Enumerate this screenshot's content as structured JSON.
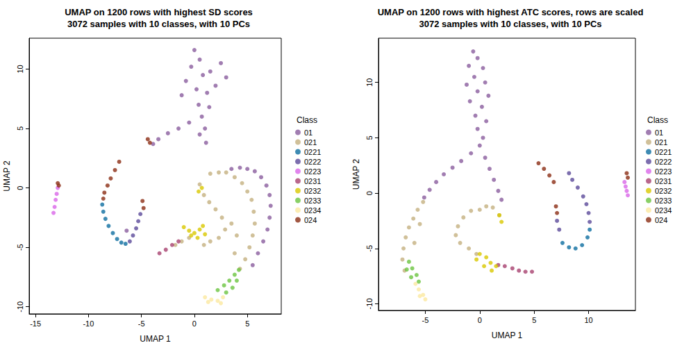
{
  "chart_data": [
    {
      "type": "scatter",
      "title": "UMAP on 1200 rows with highest SD scores\n3072 samples with 10 classes, with 10 PCs",
      "x_label": "UMAP 1",
      "y_label": "UMAP 2",
      "legend_title": "Class",
      "legend": "right",
      "grid": false,
      "marker": "circle",
      "xlim": [
        -15.6,
        8.2
      ],
      "ylim": [
        -10.6,
        12.6
      ],
      "xticks": [
        -15,
        -10,
        -5,
        0,
        5
      ],
      "yticks": [
        -10,
        -5,
        0,
        5,
        10
      ],
      "series": [
        {
          "name": "01",
          "color": "#8A5C9E",
          "values": [
            [
              0,
              11.6
            ],
            [
              0.5,
              10.8
            ],
            [
              -0.3,
              10.2
            ],
            [
              0.8,
              9.5
            ],
            [
              1.5,
              9.8
            ],
            [
              2.5,
              10.5
            ],
            [
              3,
              9.3
            ],
            [
              -0.8,
              9
            ],
            [
              0.2,
              8.3
            ],
            [
              1.2,
              8
            ],
            [
              2,
              8.6
            ],
            [
              -1.2,
              7.8
            ],
            [
              0.4,
              7
            ],
            [
              1.4,
              6.8
            ],
            [
              0.7,
              6
            ],
            [
              1,
              5
            ],
            [
              0.5,
              4.5
            ],
            [
              1.1,
              3.8
            ],
            [
              -0.5,
              5.5
            ],
            [
              -1.5,
              5
            ],
            [
              -2.5,
              4.6
            ],
            [
              -3.4,
              4.1
            ],
            [
              -3.9,
              3.7
            ],
            [
              3.5,
              1.6
            ],
            [
              4.3,
              1.7
            ],
            [
              5,
              1.6
            ],
            [
              5.7,
              1.4
            ],
            [
              6.3,
              0.9
            ],
            [
              6.8,
              0.2
            ],
            [
              7.1,
              -0.6
            ],
            [
              7.2,
              -1.5
            ],
            [
              7.1,
              -2.5
            ],
            [
              6.9,
              -3.5
            ],
            [
              6.5,
              -4.5
            ],
            [
              6,
              -5.5
            ],
            [
              5.5,
              -6.5
            ],
            [
              -6.4,
              -3.6
            ]
          ]
        },
        {
          "name": "021",
          "color": "#C4B07F",
          "values": [
            [
              1.5,
              1.2
            ],
            [
              2.3,
              1.3
            ],
            [
              3,
              1.3
            ],
            [
              3.8,
              0.9
            ],
            [
              4.5,
              0.4
            ],
            [
              5,
              -0.3
            ],
            [
              5.4,
              -1
            ],
            [
              5.6,
              -2
            ],
            [
              5.7,
              -3
            ],
            [
              5.5,
              -4
            ],
            [
              5.2,
              -5
            ],
            [
              4.8,
              -6
            ],
            [
              4.3,
              -6.8
            ],
            [
              0.5,
              0.3
            ],
            [
              0.9,
              -0.6
            ],
            [
              1.4,
              -1.2
            ],
            [
              2,
              -1.8
            ],
            [
              2.6,
              -2.5
            ],
            [
              2.9,
              -3.5
            ],
            [
              2.3,
              -4.2
            ],
            [
              1.5,
              -4.5
            ],
            [
              0.9,
              -4.8
            ],
            [
              -0.5,
              -4.2
            ],
            [
              -1.2,
              -4.5
            ],
            [
              -1.8,
              -4.8
            ],
            [
              3.5,
              -3
            ],
            [
              4,
              -4
            ],
            [
              3.8,
              -5.5
            ]
          ]
        },
        {
          "name": "0221",
          "color": "#0E6EA0",
          "values": [
            [
              -8.7,
              -1.4
            ],
            [
              -8.6,
              -2
            ],
            [
              -8.4,
              -2.6
            ],
            [
              -8.1,
              -3.2
            ],
            [
              -7.7,
              -3.8
            ],
            [
              -7.3,
              -4.3
            ],
            [
              -6.9,
              -4.6
            ],
            [
              -6.5,
              -4.7
            ]
          ]
        },
        {
          "name": "0222",
          "color": "#5B4A9A",
          "values": [
            [
              -6.1,
              -4.5
            ],
            [
              -5.8,
              -4
            ],
            [
              -5.5,
              -3.4
            ],
            [
              -5.3,
              -2.8
            ],
            [
              -5.1,
              -2.2
            ]
          ]
        },
        {
          "name": "0223",
          "color": "#D966E8",
          "values": [
            [
              -13.3,
              -2.1
            ],
            [
              -13.2,
              -1.6
            ],
            [
              -13.1,
              -1
            ],
            [
              -13,
              -0.5
            ],
            [
              -12.9,
              0
            ]
          ]
        },
        {
          "name": "0231",
          "color": "#A8416F",
          "values": [
            [
              -3.3,
              -5.5
            ],
            [
              -2.7,
              -5.2
            ],
            [
              -2.1,
              -4.8
            ],
            [
              -1.5,
              -4.5
            ]
          ]
        },
        {
          "name": "0232",
          "color": "#D9C800",
          "values": [
            [
              -1,
              -3.3
            ],
            [
              -0.5,
              -3.6
            ],
            [
              0,
              -3.8
            ],
            [
              0.5,
              -3.5
            ],
            [
              1,
              -3.9
            ],
            [
              0.3,
              -4.2
            ],
            [
              -0.3,
              -4
            ],
            [
              0.8,
              -3.2
            ],
            [
              0.7,
              0
            ],
            [
              0.4,
              -0.3
            ]
          ]
        },
        {
          "name": "0233",
          "color": "#6BC440",
          "values": [
            [
              2.2,
              -8.6
            ],
            [
              2.8,
              -8.2
            ],
            [
              3.3,
              -7.8
            ],
            [
              3.8,
              -7.3
            ],
            [
              4.2,
              -6.9
            ],
            [
              3,
              -8.8
            ],
            [
              3.6,
              -8.4
            ],
            [
              4,
              -7.8
            ]
          ]
        },
        {
          "name": "0234",
          "color": "#FBE9A0",
          "values": [
            [
              1,
              -9.2
            ],
            [
              1.6,
              -9.4
            ],
            [
              2.2,
              -9.5
            ],
            [
              2.7,
              -9.2
            ],
            [
              1.3,
              -9.6
            ],
            [
              2.5,
              -9.7
            ]
          ]
        },
        {
          "name": "024",
          "color": "#8B2D14",
          "values": [
            [
              -7.1,
              2.2
            ],
            [
              -7.5,
              1.5
            ],
            [
              -7.9,
              0.8
            ],
            [
              -8.2,
              0.2
            ],
            [
              -8.5,
              -0.4
            ],
            [
              -8.6,
              -0.9
            ],
            [
              -4.8,
              -1.7
            ],
            [
              -4.9,
              -1.1
            ],
            [
              -12.8,
              0.2
            ],
            [
              -12.9,
              0.4
            ],
            [
              -4.4,
              4.1
            ],
            [
              -4.2,
              3.8
            ]
          ]
        }
      ]
    },
    {
      "type": "scatter",
      "title": "UMAP on 1200 rows with highest ATC scores, rows are scaled\n3072 samples with 10 classes, with 10 PCs",
      "x_label": "UMAP 1",
      "y_label": "UMAP 2",
      "legend_title": "Class",
      "legend": "right",
      "grid": false,
      "marker": "circle",
      "xlim": [
        -9.3,
        14.3
      ],
      "ylim": [
        -10.6,
        14
      ],
      "xticks": [
        -5,
        0,
        5,
        10
      ],
      "yticks": [
        -10,
        -5,
        0,
        5,
        10
      ],
      "series": [
        {
          "name": "01",
          "color": "#8A5C9E",
          "values": [
            [
              -0.6,
              12.8
            ],
            [
              -0.2,
              12.2
            ],
            [
              -1,
              11.5
            ],
            [
              0.3,
              11.3
            ],
            [
              -0.5,
              10.5
            ],
            [
              0.5,
              10
            ],
            [
              -1.2,
              9.8
            ],
            [
              -0.2,
              9.2
            ],
            [
              0.8,
              8.8
            ],
            [
              -0.9,
              8.3
            ],
            [
              0.2,
              7.8
            ],
            [
              -0.4,
              7
            ],
            [
              0.6,
              6.5
            ],
            [
              -0.2,
              5.8
            ],
            [
              0.3,
              5
            ],
            [
              0,
              4.3
            ],
            [
              -0.8,
              3.6
            ],
            [
              -1.7,
              2.9
            ],
            [
              -2.5,
              2.3
            ],
            [
              -3.3,
              1.7
            ],
            [
              -4,
              1
            ],
            [
              -4.6,
              0.3
            ],
            [
              -5.1,
              -0.4
            ],
            [
              0.5,
              3.2
            ],
            [
              0.9,
              2.2
            ],
            [
              1.3,
              1.2
            ],
            [
              1.7,
              0.2
            ],
            [
              2,
              -0.6
            ]
          ]
        },
        {
          "name": "021",
          "color": "#C4B07F",
          "values": [
            [
              -5.2,
              -0.8
            ],
            [
              -5.7,
              -1.5
            ],
            [
              -6.1,
              -2.3
            ],
            [
              -6.5,
              -3.1
            ],
            [
              -6.8,
              -4
            ],
            [
              -7,
              -5
            ],
            [
              -7.1,
              -6
            ],
            [
              -6.9,
              -7
            ],
            [
              -5.5,
              -2.8
            ],
            [
              -6,
              -4.5
            ],
            [
              0.6,
              -1.2
            ],
            [
              0,
              -1.5
            ],
            [
              -0.8,
              -1.6
            ],
            [
              -1.5,
              -2.2
            ],
            [
              -2,
              -3
            ],
            [
              -2.2,
              -3.8
            ],
            [
              -1.8,
              -4.5
            ],
            [
              -1,
              -5
            ],
            [
              -0.3,
              -5.5
            ],
            [
              1.2,
              -1.3
            ],
            [
              1.8,
              -2
            ]
          ]
        },
        {
          "name": "0221",
          "color": "#0E6EA0",
          "values": [
            [
              7.6,
              -4.5
            ],
            [
              8.2,
              -4.9
            ],
            [
              8.8,
              -5
            ],
            [
              9.4,
              -4.7
            ],
            [
              9.9,
              -4
            ],
            [
              10.1,
              -3.3
            ]
          ]
        },
        {
          "name": "0222",
          "color": "#5B4A9A",
          "values": [
            [
              10.1,
              -2.6
            ],
            [
              10,
              -1.8
            ],
            [
              9.8,
              -1
            ],
            [
              9.5,
              -0.3
            ],
            [
              9,
              0.5
            ],
            [
              8.5,
              1.2
            ],
            [
              8.2,
              1.8
            ],
            [
              7.1,
              -2.5
            ],
            [
              7.3,
              -3.3
            ]
          ]
        },
        {
          "name": "0223",
          "color": "#D966E8",
          "values": [
            [
              13.3,
              1
            ],
            [
              13.4,
              0.6
            ],
            [
              13.5,
              0.2
            ],
            [
              13.6,
              -0.2
            ]
          ]
        },
        {
          "name": "0231",
          "color": "#A8416F",
          "values": [
            [
              1.7,
              -6.5
            ],
            [
              2.3,
              -6.6
            ],
            [
              3,
              -6.8
            ],
            [
              3.6,
              -7
            ],
            [
              4.2,
              -7.1
            ],
            [
              4.8,
              -7.1
            ]
          ]
        },
        {
          "name": "0232",
          "color": "#D9C800",
          "values": [
            [
              0,
              -5.5
            ],
            [
              0.6,
              -5.8
            ],
            [
              1,
              -6.3
            ],
            [
              1.5,
              -6.6
            ],
            [
              0.4,
              -6.6
            ],
            [
              -0.3,
              -6
            ],
            [
              1.1,
              -7
            ],
            [
              1.8,
              -2
            ],
            [
              2,
              -2.6
            ]
          ]
        },
        {
          "name": "0233",
          "color": "#6BC440",
          "values": [
            [
              -6.5,
              -6.2
            ],
            [
              -6.2,
              -6.8
            ],
            [
              -5.8,
              -7.4
            ],
            [
              -5.6,
              -8
            ],
            [
              -6.3,
              -7.6
            ],
            [
              -6.7,
              -6.9
            ]
          ]
        },
        {
          "name": "0234",
          "color": "#FBE9A0",
          "values": [
            [
              -5.9,
              -8.2
            ],
            [
              -5.6,
              -8.7
            ],
            [
              -5.2,
              -9.2
            ],
            [
              -5,
              -9.6
            ],
            [
              -5.5,
              -9.3
            ]
          ]
        },
        {
          "name": "024",
          "color": "#8B2D14",
          "values": [
            [
              5.4,
              2.7
            ],
            [
              5.9,
              2.2
            ],
            [
              6.4,
              1.6
            ],
            [
              6.8,
              1
            ],
            [
              7,
              -1.2
            ],
            [
              7.1,
              -1.8
            ],
            [
              13.5,
              1.8
            ],
            [
              13.6,
              1.4
            ]
          ]
        }
      ]
    }
  ]
}
